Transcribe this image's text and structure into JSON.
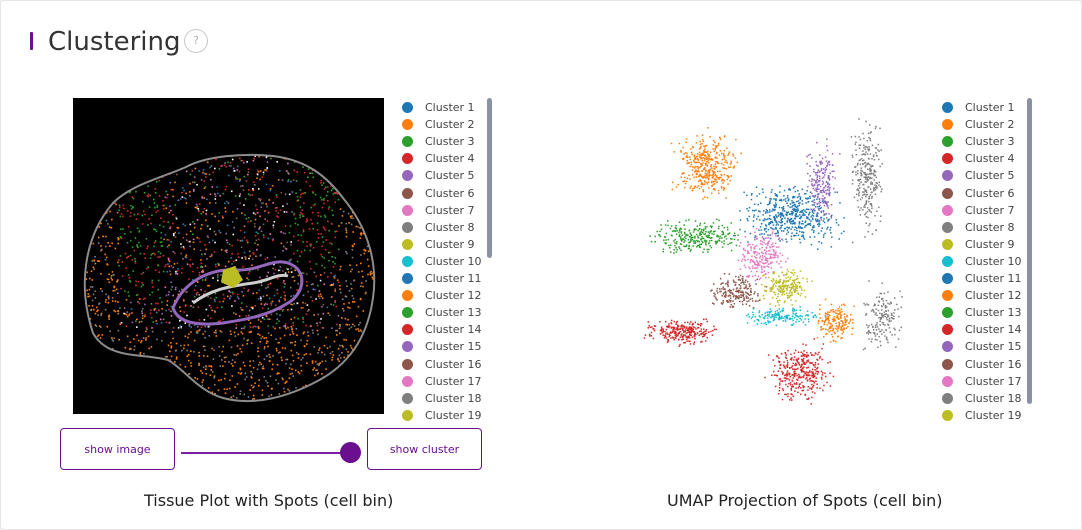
{
  "section": {
    "title": "Clustering",
    "help_label": "?"
  },
  "tissue_panel": {
    "caption": "Tissue Plot with Spots (cell bin)",
    "show_image_label": "show image",
    "show_cluster_label": "show cluster",
    "slider_value": 1
  },
  "umap_panel": {
    "caption": "UMAP Projection of Spots (cell bin)"
  },
  "legend": [
    {
      "label": "Cluster 1",
      "color": "#1f77b4"
    },
    {
      "label": "Cluster 2",
      "color": "#ff7f0e"
    },
    {
      "label": "Cluster 3",
      "color": "#2ca02c"
    },
    {
      "label": "Cluster 4",
      "color": "#d62728"
    },
    {
      "label": "Cluster 5",
      "color": "#9467bd"
    },
    {
      "label": "Cluster 6",
      "color": "#8c564b"
    },
    {
      "label": "Cluster 7",
      "color": "#e377c2"
    },
    {
      "label": "Cluster 8",
      "color": "#7f7f7f"
    },
    {
      "label": "Cluster 9",
      "color": "#bcbd22"
    },
    {
      "label": "Cluster 10",
      "color": "#17becf"
    },
    {
      "label": "Cluster 11",
      "color": "#1f77b4"
    },
    {
      "label": "Cluster 12",
      "color": "#ff7f0e"
    },
    {
      "label": "Cluster 13",
      "color": "#2ca02c"
    },
    {
      "label": "Cluster 14",
      "color": "#d62728"
    },
    {
      "label": "Cluster 15",
      "color": "#9467bd"
    },
    {
      "label": "Cluster 16",
      "color": "#8c564b"
    },
    {
      "label": "Cluster 17",
      "color": "#e377c2"
    },
    {
      "label": "Cluster 18",
      "color": "#7f7f7f"
    },
    {
      "label": "Cluster 19",
      "color": "#bcbd22"
    }
  ],
  "colors": {
    "accent": "#6a0f8e"
  }
}
